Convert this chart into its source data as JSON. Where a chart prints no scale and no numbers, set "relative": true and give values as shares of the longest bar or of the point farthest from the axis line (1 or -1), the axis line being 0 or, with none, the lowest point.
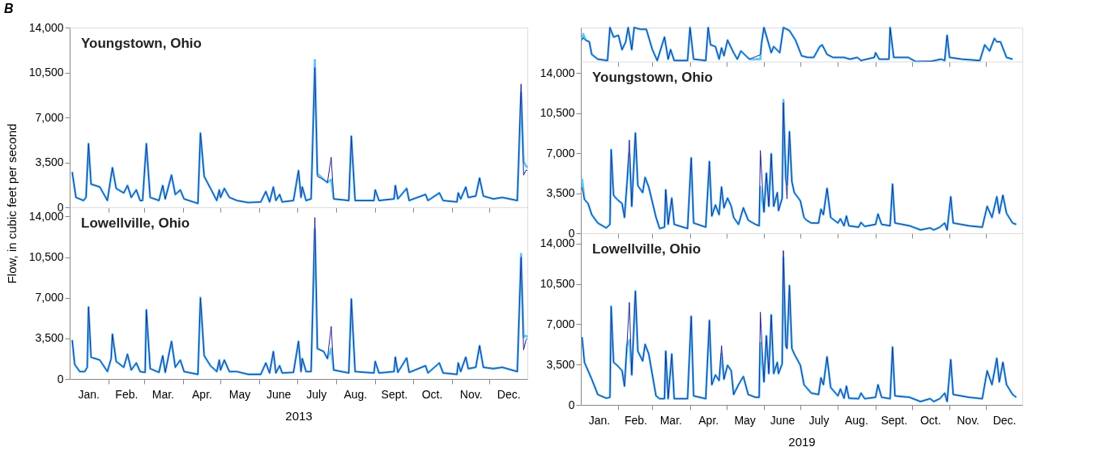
{
  "chart_data": [
    {
      "type": "line",
      "title": "B",
      "annotations": [
        "Youngstown, Ohio"
      ],
      "ylabel": "Flow, in cubic feet per second",
      "tick_labels": "y",
      "xlim": [
        "2013-01-01",
        "2013-12-31"
      ],
      "ylim": [
        0,
        14000
      ],
      "xticks": [
        {
          "value": "2013-02-01",
          "label": null
        },
        {
          "value": "2013-03-01",
          "label": null
        },
        {
          "value": "2013-04-01",
          "label": null
        },
        {
          "value": "2013-05-01",
          "label": null
        },
        {
          "value": "2013-06-01",
          "label": null
        },
        {
          "value": "2013-07-01",
          "label": null
        },
        {
          "value": "2013-08-01",
          "label": null
        },
        {
          "value": "2013-09-01",
          "label": null
        },
        {
          "value": "2013-10-01",
          "label": null
        },
        {
          "value": "2013-11-01",
          "label": null
        },
        {
          "value": "2013-12-01",
          "label": null
        }
      ],
      "yticks": [
        0,
        {
          "value": 3500,
          "label": "3,500"
        },
        {
          "value": 7000,
          "label": "7,000"
        },
        {
          "value": 10500,
          "label": "10,500"
        },
        {
          "value": 14000,
          "label": "14,000"
        }
      ],
      "x": [
        "2013-01-03",
        "2013-01-06",
        "2013-01-12",
        "2013-01-14",
        "2013-01-16",
        "2013-01-18",
        "2013-01-25",
        "2013-01-31",
        "2013-02-04",
        "2013-02-07",
        "2013-02-13",
        "2013-02-16",
        "2013-02-19",
        "2013-02-23",
        "2013-02-26",
        "2013-02-28",
        "2013-03-03",
        "2013-03-06",
        "2013-03-13",
        "2013-03-16",
        "2013-03-18",
        "2013-03-23",
        "2013-03-26",
        "2013-03-30",
        "2013-04-02",
        "2013-04-13",
        "2013-04-15",
        "2013-04-18",
        "2013-04-23",
        "2013-04-28",
        "2013-04-30",
        "2013-05-01",
        "2013-05-04",
        "2013-05-08",
        "2013-05-14",
        "2013-05-23",
        "2013-06-02",
        "2013-06-06",
        "2013-06-09",
        "2013-06-12",
        "2013-06-14",
        "2013-06-17",
        "2013-06-19",
        "2013-06-28",
        "2013-07-02",
        "2013-07-04",
        "2013-07-05",
        "2013-07-08",
        "2013-07-12",
        "2013-07-15",
        "2013-07-17",
        "2013-07-22",
        "2013-07-25",
        "2013-07-28",
        "2013-07-30",
        "2013-08-11",
        "2013-08-13",
        "2013-08-16",
        "2013-08-31",
        "2013-09-01",
        "2013-09-04",
        "2013-09-16",
        "2013-09-17",
        "2013-09-19",
        "2013-09-26",
        "2013-09-28",
        "2013-10-11",
        "2013-10-13",
        "2013-10-22",
        "2013-10-25",
        "2013-11-05",
        "2013-11-06",
        "2013-11-08",
        "2013-11-12",
        "2013-11-14",
        "2013-11-20",
        "2013-11-23",
        "2013-11-26",
        "2013-12-04",
        "2013-12-11",
        "2013-12-23",
        "2013-12-26",
        "2013-12-28",
        "2013-12-30",
        "2013-12-31"
      ],
      "series": [
        {
          "color": "#25258f",
          "values": [
            2750,
            770,
            530,
            770,
            4950,
            1810,
            1580,
            530,
            3090,
            1470,
            1120,
            1700,
            770,
            1350,
            530,
            530,
            4950,
            770,
            530,
            1700,
            650,
            2510,
            1000,
            1350,
            650,
            300,
            5770,
            2400,
            1470,
            530,
            1350,
            770,
            1470,
            770,
            530,
            370,
            420,
            1230,
            420,
            1580,
            530,
            1000,
            420,
            530,
            2860,
            770,
            1580,
            530,
            650,
            10880,
            2400,
            2160,
            1930,
            3900,
            650,
            530,
            5540,
            530,
            530,
            1350,
            530,
            650,
            1700,
            650,
            1470,
            530,
            1000,
            530,
            1120,
            530,
            420,
            1120,
            650,
            1580,
            770,
            880,
            2280,
            880,
            650,
            770,
            530,
            9600,
            2500,
            2900,
            2860
          ]
        },
        {
          "color": "#5bc8f5",
          "values": [
            2750,
            770,
            530,
            770,
            4950,
            1810,
            1580,
            530,
            3090,
            1470,
            1120,
            1700,
            770,
            1350,
            530,
            530,
            4950,
            770,
            530,
            1700,
            650,
            2510,
            1000,
            1350,
            650,
            300,
            5770,
            2400,
            1470,
            530,
            1350,
            770,
            1470,
            770,
            530,
            370,
            420,
            1230,
            420,
            1580,
            530,
            1000,
            420,
            530,
            2860,
            770,
            1580,
            530,
            650,
            11470,
            2630,
            2160,
            1930,
            2160,
            650,
            530,
            5540,
            530,
            530,
            1350,
            530,
            650,
            1700,
            650,
            1470,
            530,
            1000,
            530,
            1120,
            530,
            420,
            1120,
            650,
            1580,
            770,
            880,
            2280,
            880,
            650,
            770,
            530,
            8910,
            3560,
            3210,
            3090
          ]
        }
      ]
    },
    {
      "type": "line",
      "annotations": [
        "Lowellville, Ohio"
      ],
      "xlabel": "2013",
      "xlim": [
        "2013-01-01",
        "2013-12-31"
      ],
      "ylim": [
        0,
        14800
      ],
      "xticks": [
        {
          "value": "2013-02-01",
          "label": null
        },
        {
          "value": "2013-03-01",
          "label": null
        },
        {
          "value": "2013-04-01",
          "label": null
        },
        {
          "value": "2013-05-01",
          "label": null
        },
        {
          "value": "2013-06-01",
          "label": null
        },
        {
          "value": "2013-07-01",
          "label": null
        },
        {
          "value": "2013-08-01",
          "label": null
        },
        {
          "value": "2013-09-01",
          "label": null
        },
        {
          "value": "2013-10-01",
          "label": null
        },
        {
          "value": "2013-11-01",
          "label": null
        },
        {
          "value": "2013-12-01",
          "label": null
        },
        {
          "value": "2013-01-16",
          "label": "Jan."
        },
        {
          "value": "2013-02-15",
          "label": "Feb."
        },
        {
          "value": "2013-03-16",
          "label": "Mar."
        },
        {
          "value": "2013-04-16",
          "label": "Apr."
        },
        {
          "value": "2013-05-16",
          "label": "May"
        },
        {
          "value": "2013-06-16",
          "label": "June"
        },
        {
          "value": "2013-07-16",
          "label": "July"
        },
        {
          "value": "2013-08-16",
          "label": "Aug."
        },
        {
          "value": "2013-09-16",
          "label": "Sept."
        },
        {
          "value": "2013-10-16",
          "label": "Oct."
        },
        {
          "value": "2013-11-16",
          "label": "Nov."
        },
        {
          "value": "2013-12-16",
          "label": "Dec."
        }
      ],
      "yticks": [
        0,
        {
          "value": 3500,
          "label": "3,500"
        },
        {
          "value": 7000,
          "label": "7,000"
        },
        {
          "value": 10500,
          "label": "10,500"
        },
        {
          "value": 14000,
          "label": "14,000"
        }
      ],
      "x": [
        "2013-01-03",
        "2013-01-05",
        "2013-01-09",
        "2013-01-13",
        "2013-01-15",
        "2013-01-16",
        "2013-01-18",
        "2013-01-25",
        "2013-01-31",
        "2013-02-03",
        "2013-02-04",
        "2013-02-07",
        "2013-02-13",
        "2013-02-16",
        "2013-02-19",
        "2013-02-23",
        "2013-02-26",
        "2013-03-02",
        "2013-03-03",
        "2013-03-06",
        "2013-03-13",
        "2013-03-16",
        "2013-03-18",
        "2013-03-23",
        "2013-03-26",
        "2013-03-30",
        "2013-04-02",
        "2013-04-13",
        "2013-04-15",
        "2013-04-18",
        "2013-04-23",
        "2013-04-28",
        "2013-04-30",
        "2013-05-01",
        "2013-05-04",
        "2013-05-08",
        "2013-05-14",
        "2013-05-23",
        "2013-06-02",
        "2013-06-06",
        "2013-06-09",
        "2013-06-12",
        "2013-06-14",
        "2013-06-17",
        "2013-06-19",
        "2013-06-28",
        "2013-07-02",
        "2013-07-04",
        "2013-07-05",
        "2013-07-08",
        "2013-07-12",
        "2013-07-15",
        "2013-07-17",
        "2013-07-22",
        "2013-07-25",
        "2013-07-28",
        "2013-07-30",
        "2013-08-11",
        "2013-08-13",
        "2013-08-16",
        "2013-08-31",
        "2013-09-01",
        "2013-09-04",
        "2013-09-16",
        "2013-09-17",
        "2013-09-19",
        "2013-09-26",
        "2013-09-28",
        "2013-10-11",
        "2013-10-13",
        "2013-10-22",
        "2013-10-25",
        "2013-11-05",
        "2013-11-06",
        "2013-11-08",
        "2013-11-12",
        "2013-11-14",
        "2013-11-20",
        "2013-11-23",
        "2013-11-26",
        "2013-12-04",
        "2013-12-11",
        "2013-12-23",
        "2013-12-26",
        "2013-12-28",
        "2013-12-30",
        "2013-12-31"
      ],
      "series": [
        {
          "color": "#25258f",
          "values": [
            3360,
            1260,
            640,
            640,
            1010,
            6210,
            1880,
            1630,
            640,
            1760,
            3860,
            1510,
            1010,
            2130,
            770,
            1380,
            640,
            570,
            5960,
            890,
            570,
            2000,
            570,
            3240,
            1010,
            1630,
            640,
            400,
            7000,
            2000,
            1140,
            640,
            1630,
            770,
            1630,
            640,
            640,
            400,
            400,
            1380,
            520,
            2370,
            520,
            1140,
            520,
            570,
            3240,
            640,
            1760,
            640,
            640,
            13920,
            2620,
            2370,
            1760,
            4530,
            770,
            520,
            6900,
            640,
            520,
            1510,
            520,
            640,
            1880,
            570,
            1810,
            570,
            1140,
            520,
            1380,
            520,
            400,
            1380,
            640,
            1880,
            890,
            1010,
            2870,
            1010,
            890,
            1010,
            640,
            10500,
            2500,
            3400,
            3500
          ]
        },
        {
          "color": "#5bc8f5",
          "values": [
            3360,
            1260,
            640,
            640,
            1010,
            6210,
            1880,
            1630,
            640,
            1760,
            3860,
            1510,
            1010,
            2130,
            770,
            1380,
            640,
            570,
            5960,
            890,
            570,
            2000,
            570,
            3240,
            1010,
            1630,
            640,
            400,
            7000,
            2000,
            1140,
            640,
            1630,
            770,
            1630,
            640,
            640,
            400,
            400,
            1380,
            520,
            2370,
            520,
            1140,
            520,
            570,
            3240,
            640,
            1760,
            640,
            640,
            12880,
            2620,
            2370,
            1760,
            2620,
            770,
            520,
            6900,
            640,
            520,
            1510,
            520,
            640,
            1880,
            570,
            1810,
            570,
            1140,
            520,
            1380,
            520,
            400,
            1380,
            640,
            1880,
            890,
            1010,
            2870,
            1010,
            890,
            1010,
            640,
            10780,
            3610,
            3730,
            3610
          ]
        }
      ]
    },
    {
      "type": "line",
      "relative": true,
      "tick_labels": false,
      "xlim": [
        "2019-01-01",
        "2019-12-31"
      ],
      "xticks": [
        {
          "value": "2019-02-01",
          "label": null
        },
        {
          "value": "2019-03-01",
          "label": null
        },
        {
          "value": "2019-04-01",
          "label": null
        },
        {
          "value": "2019-05-01",
          "label": null
        },
        {
          "value": "2019-06-01",
          "label": null
        },
        {
          "value": "2019-07-01",
          "label": null
        },
        {
          "value": "2019-08-01",
          "label": null
        },
        {
          "value": "2019-09-01",
          "label": null
        },
        {
          "value": "2019-10-01",
          "label": null
        },
        {
          "value": "2019-11-01",
          "label": null
        },
        {
          "value": "2019-12-01",
          "label": null
        }
      ],
      "x": [
        "2019-01-02",
        "2019-01-03",
        "2019-01-05",
        "2019-01-08",
        "2019-01-10",
        "2019-01-15",
        "2019-01-23",
        "2019-01-25",
        "2019-01-28",
        "2019-02-01",
        "2019-02-04",
        "2019-02-07",
        "2019-02-09",
        "2019-02-12",
        "2019-02-14",
        "2019-02-19",
        "2019-02-24",
        "2019-03-01",
        "2019-03-05",
        "2019-03-11",
        "2019-03-14",
        "2019-03-16",
        "2019-03-19",
        "2019-03-30",
        "2019-04-01",
        "2019-04-04",
        "2019-04-14",
        "2019-04-16",
        "2019-04-18",
        "2019-04-22",
        "2019-04-25",
        "2019-04-27",
        "2019-04-29",
        "2019-05-02",
        "2019-05-07",
        "2019-05-10",
        "2019-05-13",
        "2019-05-20",
        "2019-05-29",
        "2019-05-30",
        "2019-06-01",
        "2019-06-07",
        "2019-06-09",
        "2019-06-14",
        "2019-06-17",
        "2019-06-22",
        "2019-06-27",
        "2019-07-02",
        "2019-07-07",
        "2019-07-12",
        "2019-07-17",
        "2019-07-19",
        "2019-07-23",
        "2019-07-28",
        "2019-08-06",
        "2019-08-11",
        "2019-08-17",
        "2019-08-20",
        "2019-08-31",
        "2019-09-01",
        "2019-09-04",
        "2019-09-12",
        "2019-09-13",
        "2019-09-16",
        "2019-09-28",
        "2019-10-04",
        "2019-10-17",
        "2019-10-25",
        "2019-10-28",
        "2019-10-30",
        "2019-11-01",
        "2019-11-11",
        "2019-11-26",
        "2019-11-30",
        "2019-12-04",
        "2019-12-08",
        "2019-12-10",
        "2019-12-13",
        "2019-12-18",
        "2019-12-23"
      ],
      "series": [
        {
          "color": "#25258f",
          "values": [
            0.63,
            0.7,
            0.63,
            0.58,
            0.21,
            0.07,
            0.03,
            1,
            0.72,
            0.77,
            0.35,
            0.58,
            1,
            0.35,
            1,
            0.95,
            0.95,
            0.35,
            0.03,
            0.72,
            0.07,
            0.35,
            0.03,
            0.03,
            1,
            0.07,
            0.03,
            1,
            0.49,
            0.44,
            0.07,
            0.4,
            0.17,
            0.63,
            0.26,
            0.07,
            0.31,
            0.07,
            0.2,
            0.54,
            1,
            0.26,
            0.44,
            0.26,
            1,
            0.91,
            0.63,
            0.17,
            0.12,
            0.12,
            0.44,
            0.49,
            0.21,
            0.12,
            0.12,
            0.07,
            0.12,
            0.03,
            0.12,
            0.26,
            0.07,
            0.07,
            1,
            0.12,
            0.12,
            0,
            0.01,
            0.07,
            0.03,
            0.77,
            0.12,
            0.07,
            0.03,
            0.49,
            0.31,
            0.68,
            0.58,
            0.58,
            0.12,
            0.07
          ]
        },
        {
          "color": "#5bc8f5",
          "values": [
            0.63,
            0.81,
            0.63,
            0.58,
            0.21,
            0.07,
            0.03,
            1,
            0.72,
            0.77,
            0.35,
            0.58,
            1,
            0.35,
            1,
            0.95,
            0.95,
            0.35,
            0.03,
            0.72,
            0.07,
            0.35,
            0.03,
            0.03,
            1,
            0.07,
            0.03,
            1,
            0.49,
            0.44,
            0.07,
            0.4,
            0.17,
            0.63,
            0.26,
            0.07,
            0.31,
            0.07,
            0.07,
            0.54,
            1,
            0.26,
            0.44,
            0.26,
            1,
            0.91,
            0.63,
            0.17,
            0.12,
            0.12,
            0.44,
            0.49,
            0.21,
            0.12,
            0.12,
            0.07,
            0.12,
            0.03,
            0.12,
            0.26,
            0.07,
            0.07,
            1,
            0.12,
            0.12,
            0,
            0.01,
            0.07,
            0.03,
            0.77,
            0.12,
            0.07,
            0.03,
            0.49,
            0.31,
            0.68,
            0.58,
            0.58,
            0.12,
            0.07
          ]
        }
      ]
    },
    {
      "type": "line",
      "annotations": [
        "Youngstown, Ohio"
      ],
      "tick_labels": "y",
      "xlim": [
        "2019-01-01",
        "2019-12-31"
      ],
      "ylim": [
        0,
        15000
      ],
      "xticks": [
        {
          "value": "2019-02-01",
          "label": null
        },
        {
          "value": "2019-03-01",
          "label": null
        },
        {
          "value": "2019-04-01",
          "label": null
        },
        {
          "value": "2019-05-01",
          "label": null
        },
        {
          "value": "2019-06-01",
          "label": null
        },
        {
          "value": "2019-07-01",
          "label": null
        },
        {
          "value": "2019-08-01",
          "label": null
        },
        {
          "value": "2019-09-01",
          "label": null
        },
        {
          "value": "2019-10-01",
          "label": null
        },
        {
          "value": "2019-11-01",
          "label": null
        },
        {
          "value": "2019-12-01",
          "label": null
        }
      ],
      "yticks": [
        0,
        {
          "value": 3500,
          "label": "3,500"
        },
        {
          "value": 7000,
          "label": "7,000"
        },
        {
          "value": 10500,
          "label": "10,500"
        },
        {
          "value": 14000,
          "label": "14,000"
        }
      ],
      "x": [
        "2019-01-02",
        "2019-01-04",
        "2019-01-07",
        "2019-01-10",
        "2019-01-15",
        "2019-01-22",
        "2019-01-25",
        "2019-01-26",
        "2019-01-28",
        "2019-01-31",
        "2019-02-04",
        "2019-02-06",
        "2019-02-08",
        "2019-02-10",
        "2019-02-12",
        "2019-02-15",
        "2019-02-17",
        "2019-02-21",
        "2019-02-23",
        "2019-02-26",
        "2019-03-04",
        "2019-03-07",
        "2019-03-11",
        "2019-03-12",
        "2019-03-14",
        "2019-03-17",
        "2019-03-19",
        "2019-03-30",
        "2019-04-02",
        "2019-04-04",
        "2019-04-14",
        "2019-04-17",
        "2019-04-19",
        "2019-04-22",
        "2019-04-25",
        "2019-04-27",
        "2019-04-29",
        "2019-05-02",
        "2019-05-05",
        "2019-05-07",
        "2019-05-11",
        "2019-05-15",
        "2019-05-19",
        "2019-05-25",
        "2019-05-28",
        "2019-05-29",
        "2019-06-01",
        "2019-06-03",
        "2019-06-05",
        "2019-06-07",
        "2019-06-09",
        "2019-06-12",
        "2019-06-13",
        "2019-06-16",
        "2019-06-17",
        "2019-06-19",
        "2019-06-20",
        "2019-06-22",
        "2019-06-24",
        "2019-06-26",
        "2019-07-01",
        "2019-07-04",
        "2019-07-06",
        "2019-07-10",
        "2019-07-16",
        "2019-07-18",
        "2019-07-20",
        "2019-07-23",
        "2019-07-26",
        "2019-08-01",
        "2019-08-03",
        "2019-08-06",
        "2019-08-08",
        "2019-08-10",
        "2019-08-18",
        "2019-08-20",
        "2019-08-23",
        "2019-09-01",
        "2019-09-03",
        "2019-09-06",
        "2019-09-13",
        "2019-09-15",
        "2019-09-17",
        "2019-09-29",
        "2019-10-08",
        "2019-10-16",
        "2019-10-19",
        "2019-10-24",
        "2019-10-28",
        "2019-10-30",
        "2019-11-02",
        "2019-11-04",
        "2019-11-17",
        "2019-11-28",
        "2019-12-02",
        "2019-12-06",
        "2019-12-10",
        "2019-12-12",
        "2019-12-15",
        "2019-12-18",
        "2019-12-23",
        "2019-12-26"
      ],
      "series": [
        {
          "color": "#25258f",
          "values": [
            4000,
            2950,
            2590,
            1620,
            890,
            460,
            770,
            7300,
            3310,
            2950,
            2590,
            1380,
            4280,
            8150,
            2350,
            8750,
            4160,
            3550,
            4880,
            4040,
            1380,
            410,
            530,
            3800,
            770,
            3070,
            770,
            410,
            6580,
            890,
            530,
            6260,
            1500,
            2470,
            1620,
            4040,
            2220,
            3070,
            2350,
            1380,
            770,
            2220,
            1140,
            770,
            650,
            7230,
            1860,
            5250,
            2350,
            6940,
            2350,
            3550,
            1980,
            3070,
            11410,
            4760,
            3000,
            8870,
            4520,
            3550,
            2830,
            1380,
            1140,
            890,
            890,
            2100,
            1620,
            3920,
            1380,
            890,
            1260,
            650,
            1500,
            650,
            530,
            940,
            600,
            770,
            1670,
            770,
            650,
            4280,
            890,
            650,
            290,
            460,
            290,
            530,
            890,
            290,
            3190,
            890,
            650,
            530,
            2350,
            1380,
            3190,
            1740,
            3310,
            1740,
            890,
            770
          ]
        },
        {
          "color": "#5bc8f5",
          "values": [
            4760,
            2950,
            2590,
            1620,
            890,
            460,
            770,
            7300,
            3310,
            2950,
            2590,
            1380,
            4280,
            6940,
            2350,
            8750,
            4160,
            3550,
            4880,
            4040,
            1380,
            410,
            530,
            3800,
            770,
            3070,
            770,
            410,
            6580,
            890,
            530,
            6260,
            1500,
            2470,
            1620,
            4040,
            2220,
            3070,
            2350,
            1380,
            770,
            2220,
            1140,
            770,
            650,
            4040,
            1860,
            5250,
            2350,
            6940,
            2350,
            3550,
            1980,
            3070,
            11650,
            4760,
            4280,
            8870,
            4520,
            3550,
            2830,
            1380,
            1140,
            890,
            890,
            2100,
            1620,
            3920,
            1380,
            890,
            1260,
            650,
            1500,
            650,
            530,
            940,
            600,
            770,
            1670,
            770,
            650,
            4280,
            890,
            650,
            290,
            460,
            290,
            530,
            890,
            290,
            3190,
            890,
            650,
            530,
            2350,
            1380,
            3190,
            1740,
            3310,
            1740,
            890,
            770
          ]
        }
      ]
    },
    {
      "type": "line",
      "annotations": [
        "Lowellville, Ohio"
      ],
      "xlabel": "2019",
      "xlim": [
        "2019-01-01",
        "2019-12-31"
      ],
      "ylim": [
        0,
        14900
      ],
      "xticks": [
        {
          "value": "2019-02-01",
          "label": null
        },
        {
          "value": "2019-03-01",
          "label": null
        },
        {
          "value": "2019-04-01",
          "label": null
        },
        {
          "value": "2019-05-01",
          "label": null
        },
        {
          "value": "2019-06-01",
          "label": null
        },
        {
          "value": "2019-07-01",
          "label": null
        },
        {
          "value": "2019-08-01",
          "label": null
        },
        {
          "value": "2019-09-01",
          "label": null
        },
        {
          "value": "2019-10-01",
          "label": null
        },
        {
          "value": "2019-11-01",
          "label": null
        },
        {
          "value": "2019-12-01",
          "label": null
        },
        {
          "value": "2019-01-16",
          "label": "Jan."
        },
        {
          "value": "2019-02-15",
          "label": "Feb."
        },
        {
          "value": "2019-03-16",
          "label": "Mar."
        },
        {
          "value": "2019-04-16",
          "label": "Apr."
        },
        {
          "value": "2019-05-16",
          "label": "May"
        },
        {
          "value": "2019-06-16",
          "label": "June"
        },
        {
          "value": "2019-07-16",
          "label": "July"
        },
        {
          "value": "2019-08-16",
          "label": "Aug."
        },
        {
          "value": "2019-09-16",
          "label": "Sept."
        },
        {
          "value": "2019-10-16",
          "label": "Oct."
        },
        {
          "value": "2019-11-16",
          "label": "Nov."
        },
        {
          "value": "2019-12-16",
          "label": "Dec."
        }
      ],
      "yticks": [
        0,
        {
          "value": 3500,
          "label": "3,500"
        },
        {
          "value": 7000,
          "label": "7,000"
        },
        {
          "value": 10500,
          "label": "10,500"
        },
        {
          "value": 14000,
          "label": "14,000"
        }
      ],
      "x": [
        "2019-01-02",
        "2019-01-04",
        "2019-01-07",
        "2019-01-10",
        "2019-01-15",
        "2019-01-22",
        "2019-01-25",
        "2019-01-26",
        "2019-01-28",
        "2019-01-31",
        "2019-02-04",
        "2019-02-06",
        "2019-02-08",
        "2019-02-10",
        "2019-02-12",
        "2019-02-15",
        "2019-02-17",
        "2019-02-21",
        "2019-02-23",
        "2019-02-26",
        "2019-03-04",
        "2019-03-07",
        "2019-03-11",
        "2019-03-12",
        "2019-03-14",
        "2019-03-17",
        "2019-03-19",
        "2019-03-30",
        "2019-04-02",
        "2019-04-04",
        "2019-04-14",
        "2019-04-17",
        "2019-04-19",
        "2019-04-22",
        "2019-04-25",
        "2019-04-27",
        "2019-04-29",
        "2019-05-02",
        "2019-05-05",
        "2019-05-07",
        "2019-05-11",
        "2019-05-15",
        "2019-05-19",
        "2019-05-25",
        "2019-05-28",
        "2019-05-29",
        "2019-06-01",
        "2019-06-03",
        "2019-06-05",
        "2019-06-07",
        "2019-06-09",
        "2019-06-12",
        "2019-06-13",
        "2019-06-16",
        "2019-06-17",
        "2019-06-19",
        "2019-06-20",
        "2019-06-22",
        "2019-06-24",
        "2019-06-26",
        "2019-07-01",
        "2019-07-04",
        "2019-07-06",
        "2019-07-10",
        "2019-07-16",
        "2019-07-18",
        "2019-07-20",
        "2019-07-23",
        "2019-07-26",
        "2019-08-01",
        "2019-08-03",
        "2019-08-06",
        "2019-08-08",
        "2019-08-10",
        "2019-08-18",
        "2019-08-20",
        "2019-08-23",
        "2019-09-01",
        "2019-09-03",
        "2019-09-06",
        "2019-09-13",
        "2019-09-15",
        "2019-09-17",
        "2019-09-29",
        "2019-10-08",
        "2019-10-16",
        "2019-10-19",
        "2019-10-24",
        "2019-10-28",
        "2019-10-30",
        "2019-11-02",
        "2019-11-04",
        "2019-11-17",
        "2019-11-28",
        "2019-12-02",
        "2019-12-06",
        "2019-12-10",
        "2019-12-12",
        "2019-12-15",
        "2019-12-18",
        "2019-12-23",
        "2019-12-26"
      ],
      "series": [
        {
          "color": "#25258f",
          "values": [
            5870,
            3690,
            2960,
            2230,
            900,
            580,
            660,
            8540,
            3690,
            3440,
            2960,
            1630,
            5140,
            8900,
            2600,
            9870,
            4660,
            3810,
            5260,
            4420,
            780,
            540,
            540,
            4660,
            540,
            4420,
            540,
            540,
            7690,
            780,
            540,
            7330,
            1750,
            2600,
            2110,
            5140,
            2230,
            3440,
            2960,
            900,
            1750,
            2470,
            900,
            660,
            660,
            8050,
            2000,
            5990,
            2720,
            7810,
            2720,
            3690,
            2720,
            3570,
            13390,
            5140,
            4900,
            10360,
            4900,
            4420,
            3440,
            1750,
            1510,
            1020,
            900,
            2350,
            1750,
            4170,
            1510,
            780,
            1380,
            580,
            1630,
            580,
            540,
            1020,
            540,
            660,
            1750,
            660,
            540,
            5020,
            780,
            660,
            290,
            540,
            290,
            540,
            1020,
            290,
            3930,
            900,
            660,
            540,
            2960,
            1750,
            4050,
            1990,
            3690,
            1750,
            900,
            660
          ]
        },
        {
          "color": "#5bc8f5",
          "values": [
            5870,
            3690,
            2960,
            2230,
            900,
            580,
            660,
            8540,
            3690,
            3440,
            2960,
            1630,
            5140,
            5630,
            2600,
            9870,
            4660,
            3810,
            5260,
            4420,
            780,
            540,
            540,
            4660,
            540,
            4420,
            540,
            540,
            7690,
            780,
            540,
            7330,
            1750,
            2600,
            2110,
            4420,
            2230,
            3440,
            2960,
            900,
            1750,
            2470,
            900,
            660,
            660,
            5390,
            2000,
            5990,
            2720,
            7810,
            2720,
            3690,
            2720,
            3570,
            12790,
            5140,
            4900,
            10360,
            4900,
            4420,
            3440,
            1750,
            1510,
            1020,
            900,
            2350,
            1750,
            4170,
            1510,
            780,
            1380,
            580,
            1630,
            580,
            540,
            1020,
            540,
            660,
            1750,
            660,
            540,
            5020,
            780,
            660,
            290,
            540,
            290,
            540,
            1020,
            290,
            3930,
            900,
            660,
            540,
            2960,
            1750,
            4050,
            1990,
            3690,
            1750,
            900,
            660
          ]
        }
      ]
    }
  ]
}
